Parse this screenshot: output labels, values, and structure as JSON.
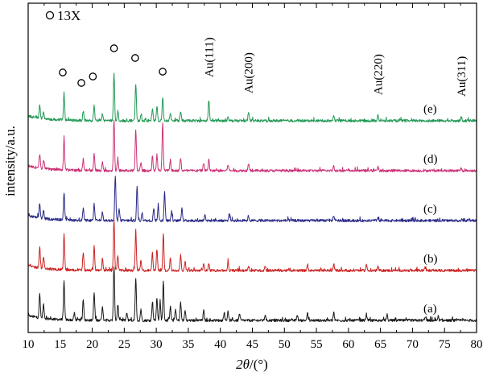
{
  "chart_data": {
    "type": "line",
    "xlabel_symbol": "2θ",
    "xlabel_unit": "/(°)",
    "ylabel": "intensity/a.u.",
    "xlim": [
      10,
      80
    ],
    "xticks": [
      10,
      15,
      20,
      25,
      30,
      35,
      40,
      45,
      50,
      55,
      60,
      65,
      70,
      75,
      80
    ],
    "grid": false,
    "legend": {
      "label": "13X",
      "marker": "open-circle",
      "position": "top-left"
    },
    "series": [
      {
        "name": "(a)",
        "color": "#1a1a1a",
        "offset": 0,
        "peaks": [
          {
            "x": 11.8,
            "h": 30
          },
          {
            "x": 12.4,
            "h": 18
          },
          {
            "x": 15.6,
            "h": 48
          },
          {
            "x": 17.2,
            "h": 8
          },
          {
            "x": 18.6,
            "h": 26
          },
          {
            "x": 20.3,
            "h": 34
          },
          {
            "x": 21.6,
            "h": 16
          },
          {
            "x": 23.4,
            "h": 68
          },
          {
            "x": 24.0,
            "h": 20
          },
          {
            "x": 25.4,
            "h": 10
          },
          {
            "x": 26.8,
            "h": 52
          },
          {
            "x": 27.6,
            "h": 14
          },
          {
            "x": 29.4,
            "h": 24
          },
          {
            "x": 30.1,
            "h": 28
          },
          {
            "x": 30.6,
            "h": 22
          },
          {
            "x": 31.1,
            "h": 48
          },
          {
            "x": 32.2,
            "h": 18
          },
          {
            "x": 33.0,
            "h": 14
          },
          {
            "x": 33.8,
            "h": 22
          },
          {
            "x": 34.5,
            "h": 12
          },
          {
            "x": 37.4,
            "h": 12
          },
          {
            "x": 40.6,
            "h": 10
          },
          {
            "x": 41.2,
            "h": 12
          },
          {
            "x": 43.0,
            "h": 8
          },
          {
            "x": 47.0,
            "h": 7
          },
          {
            "x": 52.0,
            "h": 7
          },
          {
            "x": 53.6,
            "h": 9
          },
          {
            "x": 57.7,
            "h": 10
          },
          {
            "x": 62.8,
            "h": 8
          },
          {
            "x": 66.0,
            "h": 6
          },
          {
            "x": 72.0,
            "h": 5
          },
          {
            "x": 74.0,
            "h": 5
          }
        ]
      },
      {
        "name": "(b)",
        "color": "#cc2222",
        "offset": 1,
        "peaks": [
          {
            "x": 11.8,
            "h": 26
          },
          {
            "x": 12.4,
            "h": 14
          },
          {
            "x": 15.6,
            "h": 44
          },
          {
            "x": 18.6,
            "h": 22
          },
          {
            "x": 20.3,
            "h": 30
          },
          {
            "x": 21.6,
            "h": 14
          },
          {
            "x": 23.4,
            "h": 64
          },
          {
            "x": 24.0,
            "h": 18
          },
          {
            "x": 26.8,
            "h": 50
          },
          {
            "x": 27.6,
            "h": 12
          },
          {
            "x": 29.4,
            "h": 22
          },
          {
            "x": 30.1,
            "h": 26
          },
          {
            "x": 31.1,
            "h": 46
          },
          {
            "x": 32.2,
            "h": 16
          },
          {
            "x": 33.8,
            "h": 20
          },
          {
            "x": 34.5,
            "h": 10
          },
          {
            "x": 37.4,
            "h": 10
          },
          {
            "x": 38.2,
            "h": 8
          },
          {
            "x": 41.2,
            "h": 10
          },
          {
            "x": 44.4,
            "h": 6
          },
          {
            "x": 47.0,
            "h": 6
          },
          {
            "x": 53.6,
            "h": 8
          },
          {
            "x": 57.7,
            "h": 8
          },
          {
            "x": 62.8,
            "h": 7
          },
          {
            "x": 64.6,
            "h": 5
          },
          {
            "x": 72.0,
            "h": 4
          }
        ]
      },
      {
        "name": "(c)",
        "color": "#2a2a88",
        "offset": 2,
        "peaks": [
          {
            "x": 11.8,
            "h": 18
          },
          {
            "x": 12.4,
            "h": 10
          },
          {
            "x": 15.6,
            "h": 34
          },
          {
            "x": 18.6,
            "h": 14
          },
          {
            "x": 20.3,
            "h": 20
          },
          {
            "x": 21.6,
            "h": 10
          },
          {
            "x": 23.6,
            "h": 56
          },
          {
            "x": 24.2,
            "h": 14
          },
          {
            "x": 27.0,
            "h": 42
          },
          {
            "x": 27.8,
            "h": 10
          },
          {
            "x": 29.6,
            "h": 16
          },
          {
            "x": 30.3,
            "h": 18
          },
          {
            "x": 31.3,
            "h": 36
          },
          {
            "x": 32.4,
            "h": 12
          },
          {
            "x": 34.0,
            "h": 16
          },
          {
            "x": 37.6,
            "h": 8
          },
          {
            "x": 41.4,
            "h": 8
          },
          {
            "x": 44.4,
            "h": 6
          },
          {
            "x": 57.7,
            "h": 6
          },
          {
            "x": 64.6,
            "h": 4
          }
        ]
      },
      {
        "name": "(d)",
        "color": "#cc3377",
        "offset": 3,
        "peaks": [
          {
            "x": 11.8,
            "h": 18
          },
          {
            "x": 12.4,
            "h": 10
          },
          {
            "x": 15.6,
            "h": 38
          },
          {
            "x": 18.6,
            "h": 14
          },
          {
            "x": 20.3,
            "h": 20
          },
          {
            "x": 21.6,
            "h": 10
          },
          {
            "x": 23.4,
            "h": 64
          },
          {
            "x": 24.0,
            "h": 14
          },
          {
            "x": 26.8,
            "h": 50
          },
          {
            "x": 27.6,
            "h": 10
          },
          {
            "x": 29.4,
            "h": 18
          },
          {
            "x": 30.1,
            "h": 20
          },
          {
            "x": 31.0,
            "h": 60
          },
          {
            "x": 32.2,
            "h": 14
          },
          {
            "x": 33.8,
            "h": 16
          },
          {
            "x": 37.4,
            "h": 10
          },
          {
            "x": 38.2,
            "h": 14
          },
          {
            "x": 41.2,
            "h": 8
          },
          {
            "x": 44.4,
            "h": 8
          },
          {
            "x": 57.7,
            "h": 6
          },
          {
            "x": 64.6,
            "h": 5
          },
          {
            "x": 77.6,
            "h": 3
          }
        ]
      },
      {
        "name": "(e)",
        "color": "#229955",
        "offset": 4,
        "peaks": [
          {
            "x": 11.8,
            "h": 16
          },
          {
            "x": 12.4,
            "h": 8
          },
          {
            "x": 15.6,
            "h": 32
          },
          {
            "x": 18.6,
            "h": 12
          },
          {
            "x": 20.3,
            "h": 18
          },
          {
            "x": 21.6,
            "h": 8
          },
          {
            "x": 23.4,
            "h": 60
          },
          {
            "x": 24.0,
            "h": 12
          },
          {
            "x": 26.8,
            "h": 46
          },
          {
            "x": 27.6,
            "h": 8
          },
          {
            "x": 29.4,
            "h": 14
          },
          {
            "x": 30.1,
            "h": 18
          },
          {
            "x": 31.0,
            "h": 30
          },
          {
            "x": 32.2,
            "h": 10
          },
          {
            "x": 33.8,
            "h": 12
          },
          {
            "x": 38.2,
            "h": 26
          },
          {
            "x": 41.2,
            "h": 6
          },
          {
            "x": 44.4,
            "h": 12
          },
          {
            "x": 57.7,
            "h": 6
          },
          {
            "x": 64.6,
            "h": 8
          },
          {
            "x": 77.6,
            "h": 5
          }
        ]
      }
    ],
    "circle_markers": [
      15.4,
      18.3,
      20.1,
      23.4,
      26.7,
      31.0
    ],
    "annotations": [
      {
        "text": "Au(111)",
        "x": 38.2
      },
      {
        "text": "Au(200)",
        "x": 44.4
      },
      {
        "text": "Au(220)",
        "x": 64.6
      },
      {
        "text": "Au(311)",
        "x": 77.6
      }
    ]
  }
}
